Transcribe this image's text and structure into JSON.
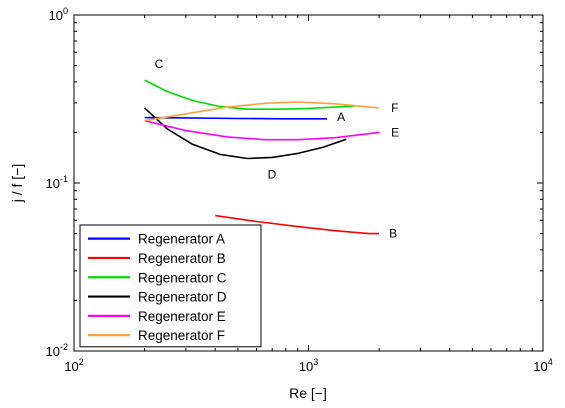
{
  "chart_data": {
    "type": "line",
    "title": "",
    "xlabel": "Re [−]",
    "ylabel": "j / f  [−]",
    "xscale": "log",
    "yscale": "log",
    "xlim": [
      100,
      10000
    ],
    "ylim": [
      0.01,
      1
    ],
    "xticks": [
      {
        "value": 100,
        "base": "10",
        "exp": "2"
      },
      {
        "value": 1000,
        "base": "10",
        "exp": "3"
      },
      {
        "value": 10000,
        "base": "10",
        "exp": "4"
      }
    ],
    "yticks": [
      {
        "value": 0.01,
        "base": "10",
        "exp": "-2"
      },
      {
        "value": 0.1,
        "base": "10",
        "exp": "-1"
      },
      {
        "value": 1,
        "base": "10",
        "exp": "0"
      }
    ],
    "grid": false,
    "legend_position": "bottom-left",
    "series": [
      {
        "name": "Regenerator A",
        "label": "A",
        "color": "#0000ff",
        "x": [
          200,
          300,
          500,
          800,
          1200
        ],
        "y": [
          0.245,
          0.244,
          0.242,
          0.241,
          0.241
        ]
      },
      {
        "name": "Regenerator B",
        "label": "B",
        "color": "#ff0000",
        "x": [
          400,
          600,
          900,
          1300,
          1800,
          2000
        ],
        "y": [
          0.064,
          0.059,
          0.055,
          0.052,
          0.05,
          0.05
        ]
      },
      {
        "name": "Regenerator C",
        "label": "C",
        "color": "#00dd00",
        "x": [
          200,
          250,
          320,
          420,
          550,
          750,
          1000,
          1300,
          1600
        ],
        "y": [
          0.41,
          0.35,
          0.31,
          0.285,
          0.275,
          0.275,
          0.278,
          0.283,
          0.288
        ]
      },
      {
        "name": "Regenerator D",
        "label": "D",
        "color": "#000000",
        "x": [
          200,
          250,
          320,
          420,
          550,
          700,
          900,
          1150,
          1450
        ],
        "y": [
          0.28,
          0.21,
          0.17,
          0.148,
          0.14,
          0.142,
          0.15,
          0.163,
          0.182
        ]
      },
      {
        "name": "Regenerator E",
        "label": "E",
        "color": "#ff00ff",
        "x": [
          200,
          300,
          450,
          650,
          900,
          1300,
          2000
        ],
        "y": [
          0.235,
          0.205,
          0.188,
          0.181,
          0.181,
          0.186,
          0.2
        ]
      },
      {
        "name": "Regenerator F",
        "label": "F",
        "color": "#ffa040",
        "x": [
          200,
          300,
          450,
          650,
          900,
          1300,
          2000
        ],
        "y": [
          0.235,
          0.258,
          0.283,
          0.298,
          0.304,
          0.296,
          0.28
        ]
      }
    ]
  }
}
